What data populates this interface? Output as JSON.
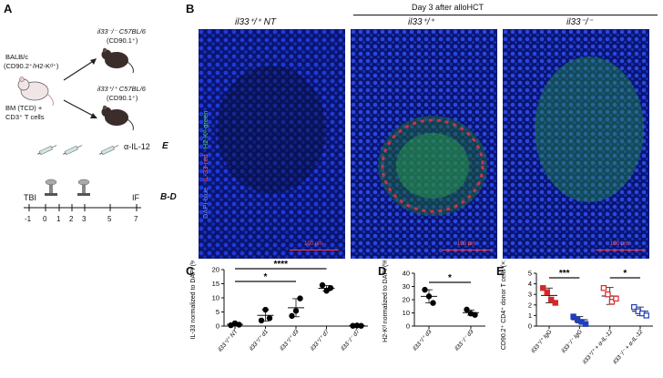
{
  "panels": {
    "A": {
      "letter": "A",
      "donor_line1": "BALB/c",
      "donor_line2": "(CD90.2⁺/H2-Kᵈ⁺)",
      "graft_line1": "BM (TCD) +",
      "graft_line2": "CD3⁺ T cells",
      "recipient_top_line1": "il33⁻/⁻ C57BL/6",
      "recipient_top_line2": "(CD90.1⁺)",
      "recipient_bottom_line1": "il33⁺/⁺ C57BL/6",
      "recipient_bottom_line2": "(CD90.1⁺)",
      "treatment_label": "α-IL-12",
      "treatment_panel": "E",
      "tbi_label": "TBI",
      "if_label": "IF",
      "if_panel": "B-D",
      "timeline_ticks": [
        "-1",
        "0",
        "1",
        "2",
        "3",
        "5",
        "7"
      ]
    },
    "B": {
      "letter": "B",
      "header": "Day 3 after alloHCT",
      "col1": "il33⁺/⁺ NT",
      "col2": "il33⁺/⁺",
      "col3": "il33⁻/⁻",
      "side_dapi": "DAPI-blue",
      "side_il33": "IL-33-red",
      "side_h2kd": "H2-Kᵈ-green",
      "scale_bar": "100 μm"
    },
    "C": {
      "letter": "C"
    },
    "D": {
      "letter": "D"
    },
    "E": {
      "letter": "E"
    }
  },
  "chart_data": [
    {
      "panel": "C",
      "type": "scatter",
      "ylabel": "IL-33 normalized to DAPI (%)",
      "ylim": [
        0,
        20
      ],
      "yticks": [
        "0",
        "5",
        "10",
        "15",
        "20"
      ],
      "categories": [
        "il33⁺/⁺ NT",
        "il33⁺/⁺ d1",
        "il33⁺/⁺ d3",
        "il33⁺/⁺ d7",
        "il33⁻/⁻ d7"
      ],
      "points": [
        [
          0.3,
          1.0,
          0.5
        ],
        [
          2.0,
          5.8,
          2.8
        ],
        [
          3.6,
          5.4,
          9.8
        ],
        [
          14.5,
          12.5,
          13.5
        ],
        [
          0.1,
          0.2,
          0.1
        ]
      ],
      "means": [
        0.6,
        3.8,
        6.5,
        13.4,
        0.13
      ],
      "sds": [
        0.35,
        2.0,
        3.2,
        1.0,
        0.05
      ],
      "colors": [
        "#000000",
        "#000000",
        "#000000",
        "#000000",
        "#000000"
      ],
      "significance": [
        {
          "from": 0,
          "to": 2,
          "label": "*"
        },
        {
          "from": 0,
          "to": 3,
          "label": "****"
        }
      ]
    },
    {
      "panel": "D",
      "type": "scatter",
      "ylabel": "H2-Kᵈ normalized to DAPI (%)",
      "ylim": [
        0,
        40
      ],
      "yticks": [
        "0",
        "10",
        "20",
        "30",
        "40"
      ],
      "categories": [
        "il33⁺/⁺ d3",
        "il33⁻/⁻ d3"
      ],
      "points": [
        [
          27.5,
          22.5,
          17.5
        ],
        [
          12.5,
          9.5,
          8.5
        ]
      ],
      "means": [
        22.5,
        10.2
      ],
      "sds": [
        5.0,
        2.0
      ],
      "colors": [
        "#000000",
        "#000000"
      ],
      "significance": [
        {
          "from": 0,
          "to": 1,
          "label": "*"
        }
      ]
    },
    {
      "panel": "E",
      "type": "scatter",
      "ylabel": "CD90.2⁺ CD4⁺ donor T cells (×10⁴)",
      "ylim": [
        0,
        5
      ],
      "yticks": [
        "0",
        "1",
        "2",
        "3",
        "4",
        "5"
      ],
      "categories": [
        "il33⁺/⁺ IgG",
        "il33⁻/⁻ IgG",
        "il33⁺/⁺ + α-IL-12",
        "il33⁻/⁻ + α-IL-12"
      ],
      "points": [
        [
          3.6,
          3.2,
          2.5,
          2.2
        ],
        [
          0.9,
          0.6,
          0.4,
          0.2
        ],
        [
          3.6,
          3.0,
          2.3,
          2.6
        ],
        [
          1.8,
          1.4,
          1.2,
          1.0
        ]
      ],
      "means": [
        2.9,
        0.6,
        2.85,
        1.4
      ],
      "sds": [
        0.7,
        0.3,
        0.8,
        0.4
      ],
      "colors": [
        "#d62728",
        "#1f3fbf",
        "#d62728",
        "#1f3fbf"
      ],
      "filled": [
        true,
        true,
        false,
        false
      ],
      "significance": [
        {
          "from": 0,
          "to": 1,
          "label": "***"
        },
        {
          "from": 2,
          "to": 3,
          "label": "*"
        }
      ]
    }
  ]
}
